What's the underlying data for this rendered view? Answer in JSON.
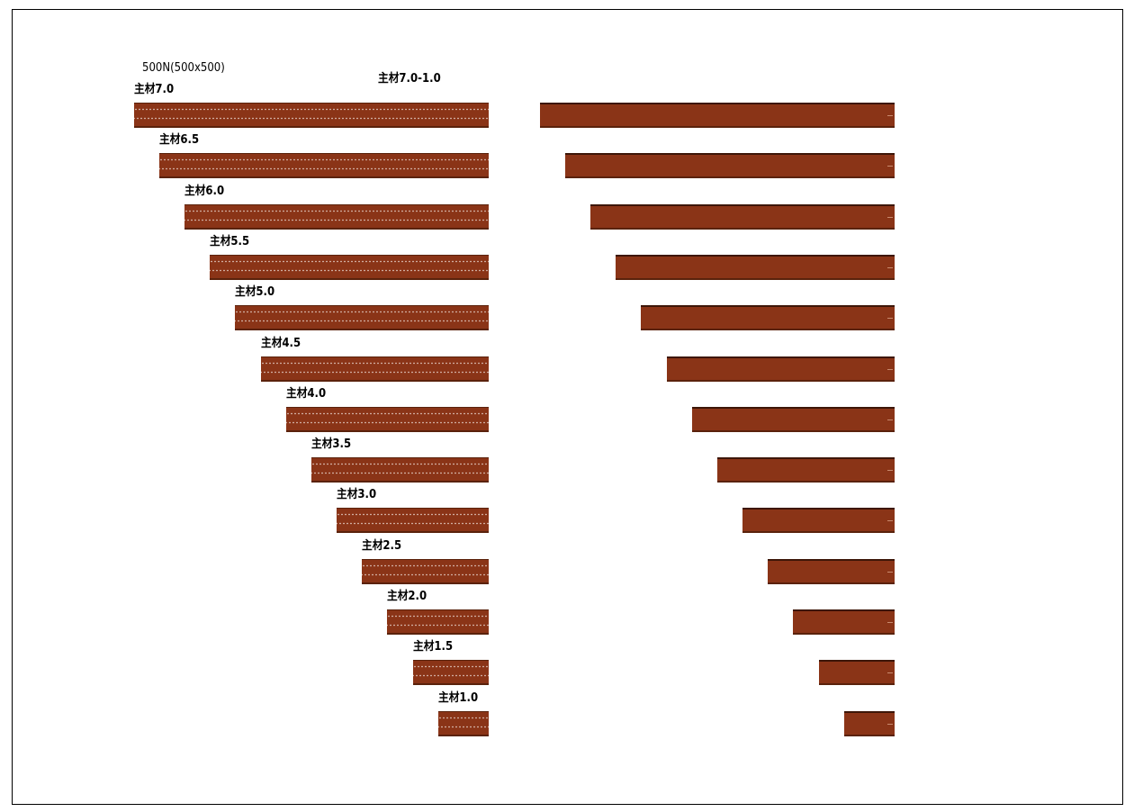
{
  "header_label": "500N(500x500)",
  "right_title": "主材7.0-1.0",
  "colors": {
    "bar_fill": "#8a3417",
    "bar_edge": "#5a220c",
    "frame": "#000000"
  },
  "members": [
    {
      "label": "主材7.0",
      "value": 7.0
    },
    {
      "label": "主材6.5",
      "value": 6.5
    },
    {
      "label": "主材6.0",
      "value": 6.0
    },
    {
      "label": "主材5.5",
      "value": 5.5
    },
    {
      "label": "主材5.0",
      "value": 5.0
    },
    {
      "label": "主材4.5",
      "value": 4.5
    },
    {
      "label": "主材4.0",
      "value": 4.0
    },
    {
      "label": "主材3.5",
      "value": 3.5
    },
    {
      "label": "主材3.0",
      "value": 3.0
    },
    {
      "label": "主材2.5",
      "value": 2.5
    },
    {
      "label": "主材2.0",
      "value": 2.0
    },
    {
      "label": "主材1.5",
      "value": 1.5
    },
    {
      "label": "主材1.0",
      "value": 1.0
    }
  ]
}
